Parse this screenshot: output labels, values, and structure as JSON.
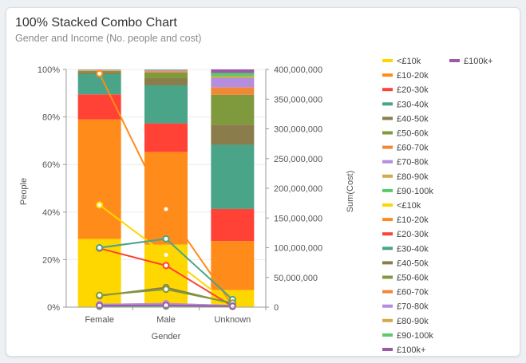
{
  "chart_data": {
    "type": "bar",
    "title": "100% Stacked Combo Chart",
    "subtitle": "Gender and Income (No. people and cost)",
    "xlabel": "Gender",
    "ylabel": "People",
    "y2label": "Sum(Cost)",
    "categories": [
      "Female",
      "Male",
      "Unknown"
    ],
    "ylim": [
      0,
      100
    ],
    "y_ticks": [
      "0%",
      "20%",
      "40%",
      "60%",
      "80%",
      "100%"
    ],
    "y2lim": [
      0,
      400000000
    ],
    "y2_ticks": [
      "0",
      "50,000,000",
      "100,000,000",
      "150,000,000",
      "200,000,000",
      "250,000,000",
      "300,000,000",
      "350,000,000",
      "400,000,000"
    ],
    "grid": true,
    "legend_position": "right",
    "series": [
      {
        "name": "<£10k",
        "color": "#ffd700",
        "values": [
          28.7,
          26.3,
          7.2
        ]
      },
      {
        "name": "£10-20k",
        "color": "#ff8c1a",
        "values": [
          50.3,
          39.0,
          20.6
        ]
      },
      {
        "name": "£20-30k",
        "color": "#ff4136",
        "values": [
          10.5,
          12.0,
          13.5
        ]
      },
      {
        "name": "£30-40k",
        "color": "#4aa488",
        "values": [
          8.5,
          16.0,
          27.0
        ]
      },
      {
        "name": "£40-50k",
        "color": "#8b7d4b",
        "values": [
          0.8,
          3.0,
          8.5
        ]
      },
      {
        "name": "£50-60k",
        "color": "#7f9a3c",
        "values": [
          0.6,
          2.4,
          12.5
        ]
      },
      {
        "name": "£60-70k",
        "color": "#f0883a",
        "values": [
          0.2,
          0.5,
          3.2
        ]
      },
      {
        "name": "£70-80k",
        "color": "#b48ce0",
        "values": [
          0.1,
          0.3,
          3.8
        ]
      },
      {
        "name": "£80-90k",
        "color": "#d4a94b",
        "values": [
          0.1,
          0.2,
          0.8
        ]
      },
      {
        "name": "£90-100k",
        "color": "#5cc96c",
        "values": [
          0.1,
          0.2,
          1.4
        ]
      },
      {
        "name": "£100k+",
        "color": "#9b59a8",
        "values": [
          0.1,
          0.1,
          1.5
        ]
      }
    ],
    "line_series": [
      {
        "name": "<£10k",
        "color": "#ffd700",
        "values": [
          172000000,
          88000000,
          2000000
        ]
      },
      {
        "name": "£10-20k",
        "color": "#ff8c1a",
        "values": [
          393000000,
          165000000,
          3000000
        ]
      },
      {
        "name": "£20-30k",
        "color": "#ff4136",
        "values": [
          99000000,
          70000000,
          1500000
        ]
      },
      {
        "name": "£30-40k",
        "color": "#4aa488",
        "values": [
          100000000,
          115000000,
          13000000
        ]
      },
      {
        "name": "£40-50k",
        "color": "#8b7d4b",
        "values": [
          19000000,
          33000000,
          6000000
        ]
      },
      {
        "name": "£50-60k",
        "color": "#7f9a3c",
        "values": [
          20000000,
          30000000,
          7000000
        ]
      },
      {
        "name": "£60-70k",
        "color": "#f0883a",
        "values": [
          4000000,
          6000000,
          2000000
        ]
      },
      {
        "name": "£70-80k",
        "color": "#b48ce0",
        "values": [
          4500000,
          5500000,
          2500000
        ]
      },
      {
        "name": "£80-90k",
        "color": "#d4a94b",
        "values": [
          1000000,
          1500000,
          1000000
        ]
      },
      {
        "name": "£90-100k",
        "color": "#5cc96c",
        "values": [
          1500000,
          2000000,
          1500000
        ]
      },
      {
        "name": "£100k+",
        "color": "#9b59a8",
        "values": [
          2500000,
          3000000,
          1500000
        ]
      }
    ]
  }
}
